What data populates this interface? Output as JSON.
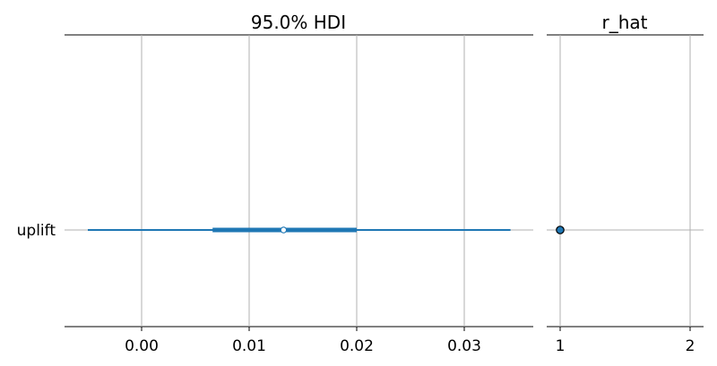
{
  "chart_data": [
    {
      "type": "forest",
      "title": "95.0% HDI",
      "variables": [
        "uplift"
      ],
      "xlim": [
        -0.007,
        0.036
      ],
      "xticks": [
        0.0,
        0.01,
        0.02,
        0.03
      ],
      "xtick_labels": [
        "0.00",
        "0.01",
        "0.02",
        "0.03"
      ],
      "grid": true,
      "color": "#1f77b4",
      "series": [
        {
          "name": "uplift",
          "hdi_95": [
            -0.005,
            0.0343
          ],
          "iqr": [
            0.0066,
            0.02
          ],
          "point_estimate": 0.0132
        }
      ]
    },
    {
      "type": "scatter",
      "title": "r_hat",
      "xlim": [
        0.99,
        2.1
      ],
      "xticks": [
        1,
        2
      ],
      "xtick_labels": [
        "1",
        "2"
      ],
      "grid": true,
      "color": "#1f77b4",
      "points": [
        {
          "variable": "uplift",
          "value": 1.0
        }
      ]
    }
  ]
}
